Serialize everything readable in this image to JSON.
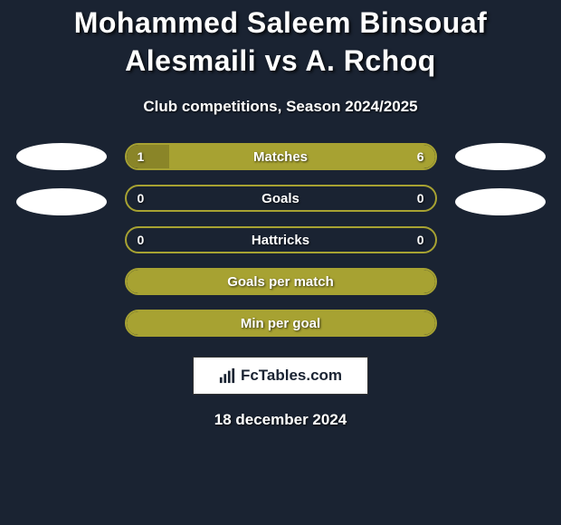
{
  "title": "Mohammed Saleem Binsouaf Alesmaili vs A. Rchoq",
  "subtitle": "Club competitions, Season 2024/2025",
  "colors": {
    "background": "#1a2332",
    "olive": "#a7a232",
    "olive_dark": "#8a8528",
    "white": "#ffffff",
    "text": "#ffffff"
  },
  "stats": [
    {
      "label": "Matches",
      "left_value": "1",
      "right_value": "6",
      "left_pct": 14,
      "right_pct": 86,
      "bar_left_color": "#8a8528",
      "bar_right_color": "#a7a232",
      "border_color": "#a7a232",
      "show_both_bars": true
    },
    {
      "label": "Goals",
      "left_value": "0",
      "right_value": "0",
      "left_pct": 0,
      "right_pct": 0,
      "bar_left_color": "#a7a232",
      "bar_right_color": "#a7a232",
      "border_color": "#a7a232",
      "show_both_bars": false
    },
    {
      "label": "Hattricks",
      "left_value": "0",
      "right_value": "0",
      "left_pct": 0,
      "right_pct": 0,
      "bar_left_color": "#a7a232",
      "bar_right_color": "#a7a232",
      "border_color": "#a7a232",
      "show_both_bars": false
    },
    {
      "label": "Goals per match",
      "left_value": "",
      "right_value": "",
      "full_fill": true,
      "fill_color": "#a7a232",
      "border_color": "#a7a232"
    },
    {
      "label": "Min per goal",
      "left_value": "",
      "right_value": "",
      "full_fill": true,
      "fill_color": "#a7a232",
      "border_color": "#a7a232"
    }
  ],
  "side_ovals": {
    "left_count": 2,
    "right_count": 2,
    "color": "#ffffff",
    "width": 100,
    "height": 30
  },
  "logo": {
    "text": "FcTables.com",
    "icon_name": "bar-chart-icon"
  },
  "date": "18 december 2024"
}
